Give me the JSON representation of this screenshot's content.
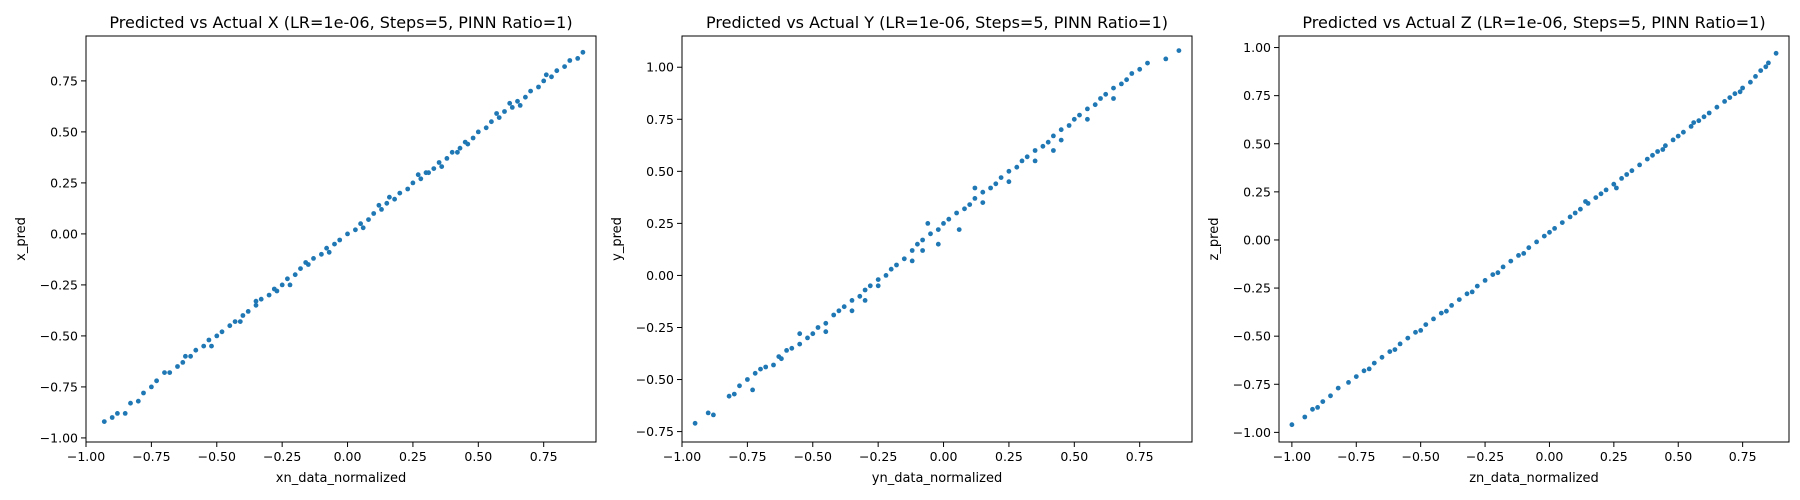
{
  "chart_data": [
    {
      "type": "scatter",
      "title": "Predicted vs Actual X (LR=1e-06, Steps=5, PINN Ratio=1)",
      "xlabel": "xn_data_normalized",
      "ylabel": "x_pred",
      "xlim": [
        -1.0,
        0.95
      ],
      "ylim": [
        -1.02,
        0.97
      ],
      "xticks": [
        -1.0,
        -0.75,
        -0.5,
        -0.25,
        0.0,
        0.25,
        0.5,
        0.75
      ],
      "xtick_labels": [
        "−1.00",
        "−0.75",
        "−0.50",
        "−0.25",
        "0.00",
        "0.25",
        "0.50",
        "0.75"
      ],
      "yticks": [
        -1.0,
        -0.75,
        -0.5,
        -0.25,
        0.0,
        0.25,
        0.5,
        0.75
      ],
      "ytick_labels": [
        "−1.00",
        "−0.75",
        "−0.50",
        "−0.25",
        "0.00",
        "0.25",
        "0.50",
        "0.75"
      ],
      "color": "#1f77b4",
      "grid": false,
      "points": [
        [
          -0.93,
          -0.92
        ],
        [
          -0.9,
          -0.9
        ],
        [
          -0.88,
          -0.88
        ],
        [
          -0.85,
          -0.88
        ],
        [
          -0.83,
          -0.83
        ],
        [
          -0.8,
          -0.82
        ],
        [
          -0.78,
          -0.78
        ],
        [
          -0.75,
          -0.75
        ],
        [
          -0.73,
          -0.72
        ],
        [
          -0.7,
          -0.68
        ],
        [
          -0.68,
          -0.68
        ],
        [
          -0.65,
          -0.65
        ],
        [
          -0.63,
          -0.63
        ],
        [
          -0.6,
          -0.6
        ],
        [
          -0.58,
          -0.57
        ],
        [
          -0.55,
          -0.55
        ],
        [
          -0.53,
          -0.52
        ],
        [
          -0.5,
          -0.5
        ],
        [
          -0.48,
          -0.48
        ],
        [
          -0.45,
          -0.45
        ],
        [
          -0.43,
          -0.43
        ],
        [
          -0.4,
          -0.4
        ],
        [
          -0.38,
          -0.38
        ],
        [
          -0.35,
          -0.35
        ],
        [
          -0.33,
          -0.32
        ],
        [
          -0.3,
          -0.3
        ],
        [
          -0.28,
          -0.27
        ],
        [
          -0.25,
          -0.25
        ],
        [
          -0.23,
          -0.22
        ],
        [
          -0.2,
          -0.2
        ],
        [
          -0.18,
          -0.17
        ],
        [
          -0.15,
          -0.15
        ],
        [
          -0.13,
          -0.12
        ],
        [
          -0.1,
          -0.1
        ],
        [
          -0.08,
          -0.07
        ],
        [
          -0.05,
          -0.05
        ],
        [
          -0.03,
          -0.03
        ],
        [
          0.0,
          0.0
        ],
        [
          0.03,
          0.02
        ],
        [
          0.05,
          0.05
        ],
        [
          0.08,
          0.07
        ],
        [
          0.1,
          0.1
        ],
        [
          0.13,
          0.12
        ],
        [
          0.15,
          0.15
        ],
        [
          0.18,
          0.17
        ],
        [
          0.2,
          0.2
        ],
        [
          0.23,
          0.22
        ],
        [
          0.25,
          0.25
        ],
        [
          0.28,
          0.27
        ],
        [
          0.3,
          0.3
        ],
        [
          0.33,
          0.32
        ],
        [
          0.35,
          0.35
        ],
        [
          0.38,
          0.37
        ],
        [
          0.4,
          0.4
        ],
        [
          0.43,
          0.42
        ],
        [
          0.45,
          0.45
        ],
        [
          0.48,
          0.47
        ],
        [
          0.5,
          0.5
        ],
        [
          0.53,
          0.52
        ],
        [
          0.55,
          0.55
        ],
        [
          0.58,
          0.57
        ],
        [
          0.6,
          0.6
        ],
        [
          0.63,
          0.62
        ],
        [
          0.65,
          0.65
        ],
        [
          0.68,
          0.67
        ],
        [
          0.7,
          0.7
        ],
        [
          0.73,
          0.72
        ],
        [
          0.75,
          0.75
        ],
        [
          0.78,
          0.77
        ],
        [
          0.8,
          0.8
        ],
        [
          0.83,
          0.82
        ],
        [
          0.85,
          0.85
        ],
        [
          0.88,
          0.86
        ],
        [
          0.9,
          0.89
        ],
        [
          -0.62,
          -0.6
        ],
        [
          -0.41,
          -0.43
        ],
        [
          -0.27,
          -0.28
        ],
        [
          -0.16,
          -0.14
        ],
        [
          -0.07,
          -0.09
        ],
        [
          0.06,
          0.03
        ],
        [
          0.16,
          0.18
        ],
        [
          0.27,
          0.29
        ],
        [
          0.36,
          0.33
        ],
        [
          0.46,
          0.44
        ],
        [
          0.57,
          0.59
        ],
        [
          0.66,
          0.63
        ],
        [
          0.76,
          0.78
        ],
        [
          -0.52,
          -0.55
        ],
        [
          -0.35,
          -0.33
        ],
        [
          -0.22,
          -0.25
        ],
        [
          0.12,
          0.14
        ],
        [
          0.31,
          0.3
        ],
        [
          0.42,
          0.4
        ],
        [
          0.62,
          0.64
        ]
      ]
    },
    {
      "type": "scatter",
      "title": "Predicted vs Actual Y (LR=1e-06, Steps=5, PINN Ratio=1)",
      "xlabel": "yn_data_normalized",
      "ylabel": "y_pred",
      "xlim": [
        -1.0,
        0.95
      ],
      "ylim": [
        -0.8,
        1.15
      ],
      "xticks": [
        -1.0,
        -0.75,
        -0.5,
        -0.25,
        0.0,
        0.25,
        0.5,
        0.75
      ],
      "xtick_labels": [
        "−1.00",
        "−0.75",
        "−0.50",
        "−0.25",
        "0.00",
        "0.25",
        "0.50",
        "0.75"
      ],
      "yticks": [
        -0.75,
        -0.5,
        -0.25,
        0.0,
        0.25,
        0.5,
        0.75,
        1.0
      ],
      "ytick_labels": [
        "−0.75",
        "−0.50",
        "−0.25",
        "0.00",
        "0.25",
        "0.50",
        "0.75",
        "1.00"
      ],
      "color": "#1f77b4",
      "grid": false,
      "points": [
        [
          -0.95,
          -0.71
        ],
        [
          -0.9,
          -0.66
        ],
        [
          -0.88,
          -0.67
        ],
        [
          -0.82,
          -0.58
        ],
        [
          -0.8,
          -0.57
        ],
        [
          -0.78,
          -0.53
        ],
        [
          -0.75,
          -0.5
        ],
        [
          -0.72,
          -0.47
        ],
        [
          -0.7,
          -0.45
        ],
        [
          -0.68,
          -0.44
        ],
        [
          -0.65,
          -0.43
        ],
        [
          -0.63,
          -0.39
        ],
        [
          -0.6,
          -0.36
        ],
        [
          -0.58,
          -0.35
        ],
        [
          -0.55,
          -0.33
        ],
        [
          -0.52,
          -0.3
        ],
        [
          -0.5,
          -0.28
        ],
        [
          -0.48,
          -0.25
        ],
        [
          -0.45,
          -0.23
        ],
        [
          -0.42,
          -0.19
        ],
        [
          -0.4,
          -0.17
        ],
        [
          -0.38,
          -0.15
        ],
        [
          -0.35,
          -0.12
        ],
        [
          -0.32,
          -0.1
        ],
        [
          -0.3,
          -0.07
        ],
        [
          -0.28,
          -0.05
        ],
        [
          -0.25,
          -0.02
        ],
        [
          -0.22,
          0.0
        ],
        [
          -0.2,
          0.03
        ],
        [
          -0.18,
          0.05
        ],
        [
          -0.15,
          0.08
        ],
        [
          -0.12,
          0.12
        ],
        [
          -0.1,
          0.15
        ],
        [
          -0.08,
          0.17
        ],
        [
          -0.05,
          0.2
        ],
        [
          -0.02,
          0.22
        ],
        [
          0.0,
          0.25
        ],
        [
          0.02,
          0.27
        ],
        [
          0.05,
          0.3
        ],
        [
          0.08,
          0.32
        ],
        [
          0.1,
          0.34
        ],
        [
          0.12,
          0.37
        ],
        [
          0.15,
          0.4
        ],
        [
          0.18,
          0.42
        ],
        [
          0.2,
          0.44
        ],
        [
          0.22,
          0.47
        ],
        [
          0.25,
          0.5
        ],
        [
          0.28,
          0.52
        ],
        [
          0.3,
          0.55
        ],
        [
          0.32,
          0.57
        ],
        [
          0.35,
          0.6
        ],
        [
          0.38,
          0.62
        ],
        [
          0.4,
          0.64
        ],
        [
          0.42,
          0.67
        ],
        [
          0.45,
          0.7
        ],
        [
          0.48,
          0.72
        ],
        [
          0.5,
          0.75
        ],
        [
          0.52,
          0.77
        ],
        [
          0.55,
          0.8
        ],
        [
          0.58,
          0.82
        ],
        [
          0.6,
          0.85
        ],
        [
          0.62,
          0.87
        ],
        [
          0.65,
          0.9
        ],
        [
          0.68,
          0.92
        ],
        [
          0.7,
          0.94
        ],
        [
          0.72,
          0.97
        ],
        [
          0.75,
          0.99
        ],
        [
          0.78,
          1.02
        ],
        [
          0.85,
          1.04
        ],
        [
          0.9,
          1.08
        ],
        [
          -0.73,
          -0.55
        ],
        [
          -0.62,
          -0.4
        ],
        [
          -0.55,
          -0.28
        ],
        [
          -0.45,
          -0.27
        ],
        [
          -0.35,
          -0.17
        ],
        [
          -0.25,
          -0.05
        ],
        [
          -0.12,
          0.07
        ],
        [
          -0.06,
          0.25
        ],
        [
          -0.02,
          0.15
        ],
        [
          0.06,
          0.22
        ],
        [
          0.15,
          0.35
        ],
        [
          0.25,
          0.45
        ],
        [
          0.35,
          0.55
        ],
        [
          0.45,
          0.65
        ],
        [
          0.55,
          0.75
        ],
        [
          0.65,
          0.85
        ],
        [
          -0.3,
          -0.12
        ],
        [
          -0.08,
          0.12
        ],
        [
          0.12,
          0.42
        ],
        [
          0.42,
          0.6
        ]
      ]
    },
    {
      "type": "scatter",
      "title": "Predicted vs Actual Z (LR=1e-06, Steps=5, PINN Ratio=1)",
      "xlabel": "zn_data_normalized",
      "ylabel": "z_pred",
      "xlim": [
        -1.05,
        0.93
      ],
      "ylim": [
        -1.05,
        1.06
      ],
      "xticks": [
        -1.0,
        -0.75,
        -0.5,
        -0.25,
        0.0,
        0.25,
        0.5,
        0.75
      ],
      "xtick_labels": [
        "−1.00",
        "−0.75",
        "−0.50",
        "−0.25",
        "0.00",
        "0.25",
        "0.50",
        "0.75"
      ],
      "yticks": [
        -1.0,
        -0.75,
        -0.5,
        -0.25,
        0.0,
        0.25,
        0.5,
        0.75,
        1.0
      ],
      "ytick_labels": [
        "−1.00",
        "−0.75",
        "−0.50",
        "−0.25",
        "0.00",
        "0.25",
        "0.50",
        "0.75",
        "1.00"
      ],
      "color": "#1f77b4",
      "grid": false,
      "points": [
        [
          -1.0,
          -0.96
        ],
        [
          -0.95,
          -0.92
        ],
        [
          -0.92,
          -0.88
        ],
        [
          -0.88,
          -0.84
        ],
        [
          -0.85,
          -0.81
        ],
        [
          -0.82,
          -0.77
        ],
        [
          -0.78,
          -0.74
        ],
        [
          -0.75,
          -0.71
        ],
        [
          -0.72,
          -0.68
        ],
        [
          -0.68,
          -0.64
        ],
        [
          -0.65,
          -0.61
        ],
        [
          -0.62,
          -0.58
        ],
        [
          -0.58,
          -0.54
        ],
        [
          -0.55,
          -0.51
        ],
        [
          -0.52,
          -0.48
        ],
        [
          -0.48,
          -0.44
        ],
        [
          -0.45,
          -0.41
        ],
        [
          -0.42,
          -0.38
        ],
        [
          -0.38,
          -0.34
        ],
        [
          -0.35,
          -0.31
        ],
        [
          -0.32,
          -0.28
        ],
        [
          -0.28,
          -0.24
        ],
        [
          -0.25,
          -0.21
        ],
        [
          -0.22,
          -0.18
        ],
        [
          -0.18,
          -0.14
        ],
        [
          -0.15,
          -0.11
        ],
        [
          -0.12,
          -0.08
        ],
        [
          -0.08,
          -0.04
        ],
        [
          -0.05,
          -0.01
        ],
        [
          -0.02,
          0.02
        ],
        [
          0.02,
          0.06
        ],
        [
          0.05,
          0.09
        ],
        [
          0.08,
          0.12
        ],
        [
          0.12,
          0.16
        ],
        [
          0.15,
          0.19
        ],
        [
          0.18,
          0.22
        ],
        [
          0.22,
          0.26
        ],
        [
          0.25,
          0.29
        ],
        [
          0.28,
          0.32
        ],
        [
          0.32,
          0.36
        ],
        [
          0.35,
          0.39
        ],
        [
          0.38,
          0.42
        ],
        [
          0.42,
          0.46
        ],
        [
          0.45,
          0.49
        ],
        [
          0.48,
          0.52
        ],
        [
          0.52,
          0.56
        ],
        [
          0.55,
          0.59
        ],
        [
          0.58,
          0.62
        ],
        [
          0.62,
          0.66
        ],
        [
          0.65,
          0.69
        ],
        [
          0.68,
          0.72
        ],
        [
          0.72,
          0.76
        ],
        [
          0.75,
          0.79
        ],
        [
          0.78,
          0.82
        ],
        [
          0.82,
          0.88
        ],
        [
          0.85,
          0.92
        ],
        [
          0.88,
          0.97
        ],
        [
          -0.9,
          -0.87
        ],
        [
          -0.7,
          -0.67
        ],
        [
          -0.6,
          -0.57
        ],
        [
          -0.4,
          -0.37
        ],
        [
          -0.3,
          -0.27
        ],
        [
          -0.2,
          -0.17
        ],
        [
          -0.1,
          -0.07
        ],
        [
          0.0,
          0.04
        ],
        [
          0.1,
          0.14
        ],
        [
          0.2,
          0.24
        ],
        [
          0.3,
          0.34
        ],
        [
          0.4,
          0.44
        ],
        [
          0.5,
          0.54
        ],
        [
          0.6,
          0.64
        ],
        [
          0.7,
          0.74
        ],
        [
          0.8,
          0.85
        ],
        [
          -0.5,
          -0.47
        ],
        [
          0.14,
          0.2
        ],
        [
          0.26,
          0.27
        ],
        [
          0.44,
          0.47
        ],
        [
          0.56,
          0.61
        ],
        [
          0.74,
          0.77
        ],
        [
          0.84,
          0.9
        ]
      ]
    }
  ]
}
